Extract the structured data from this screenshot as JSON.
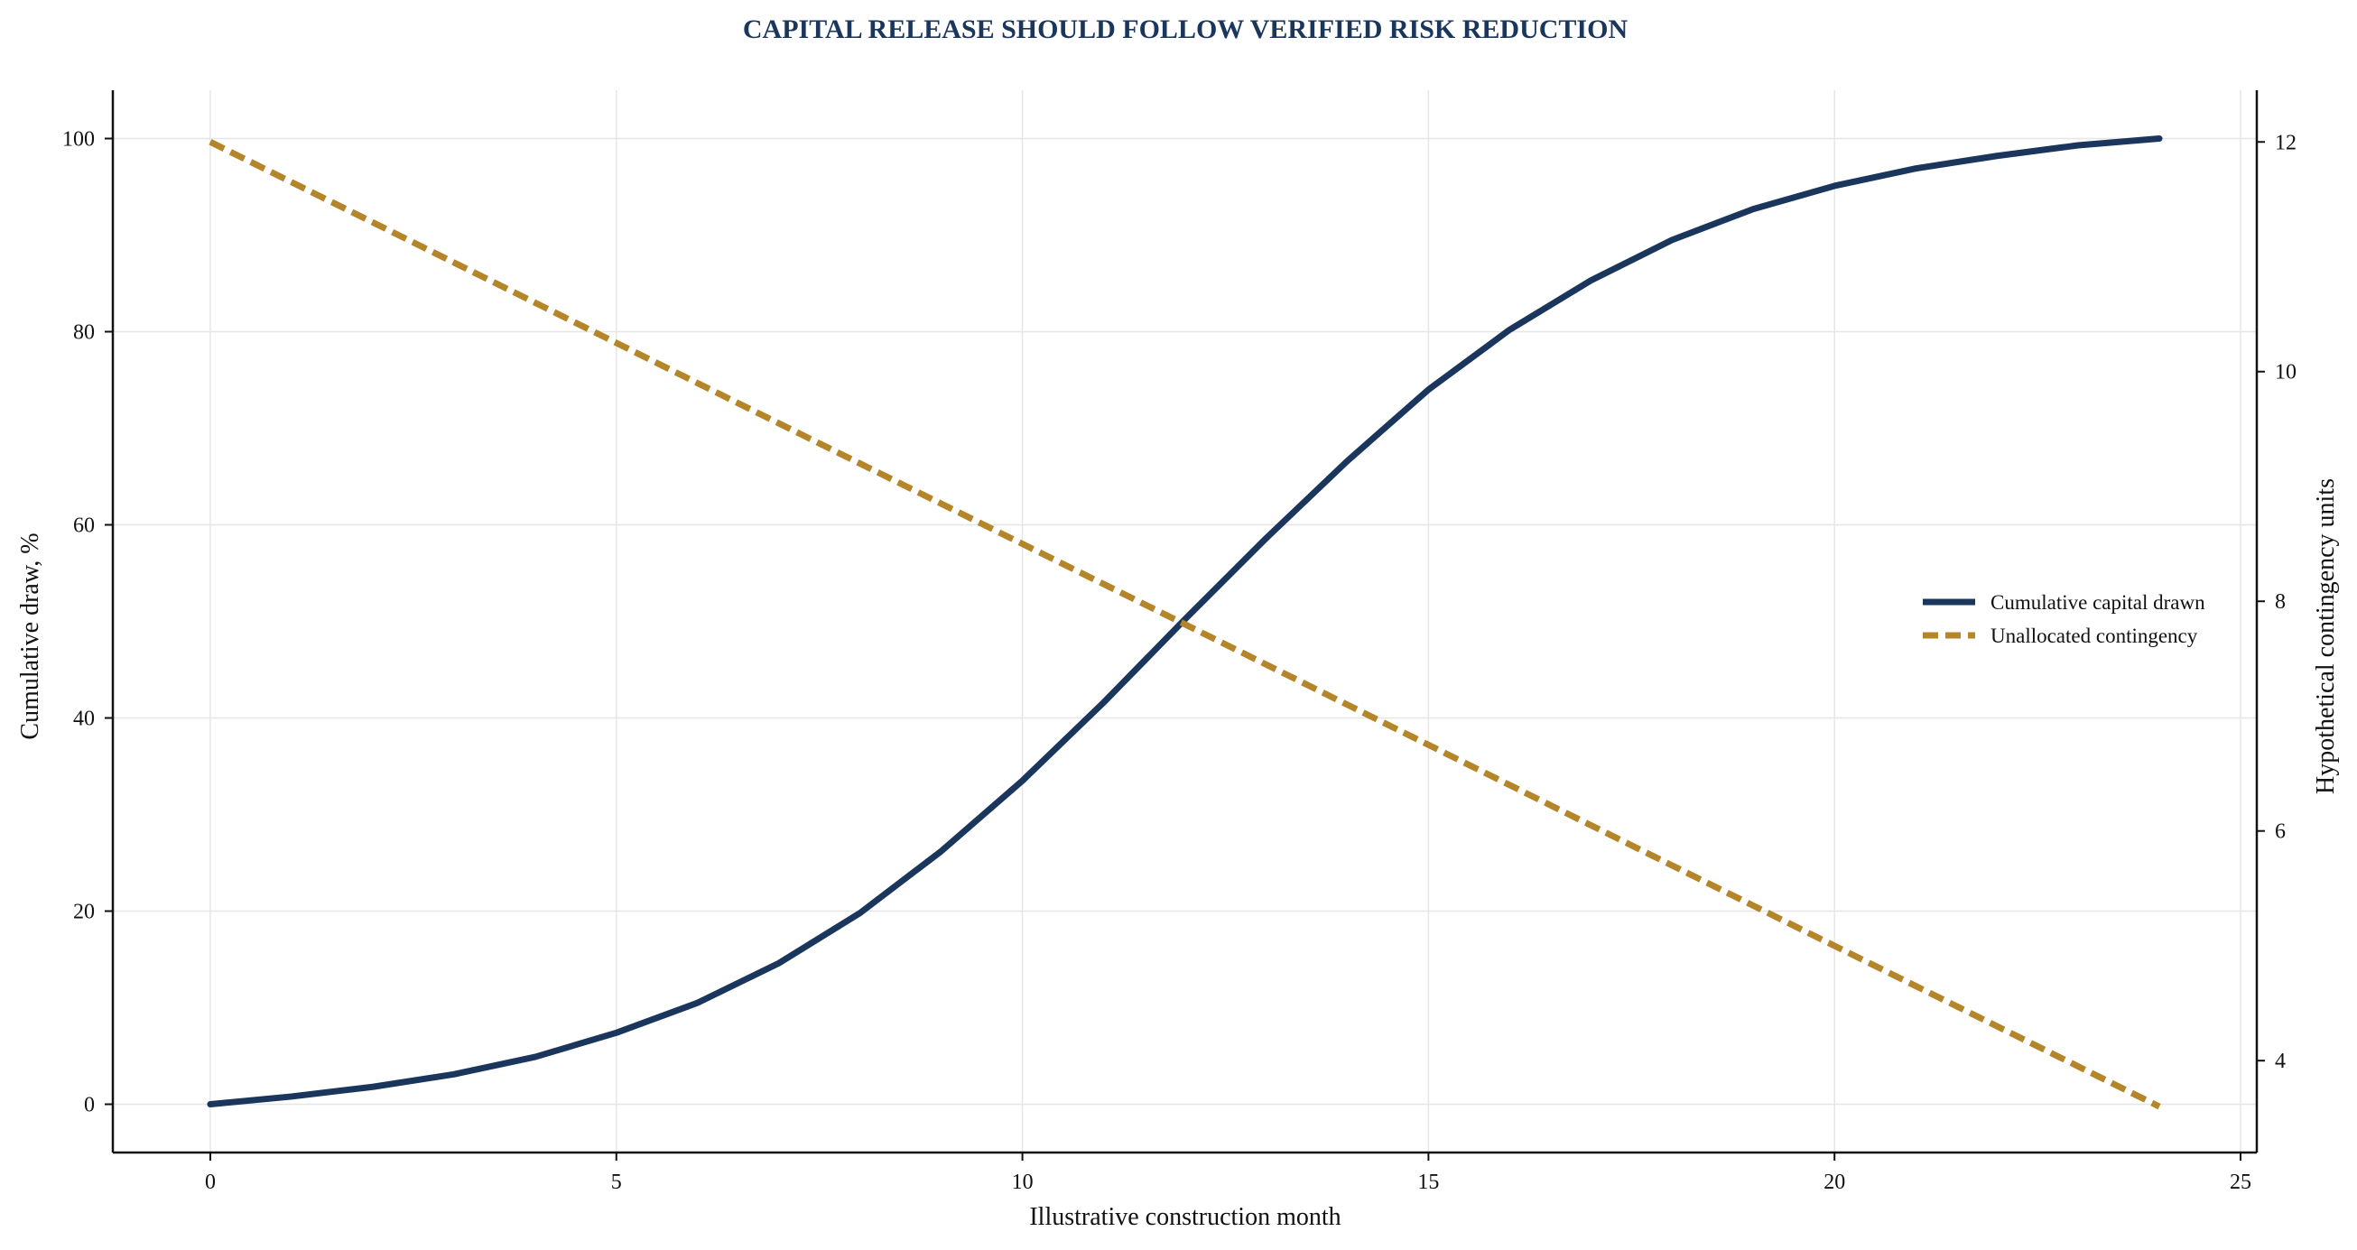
{
  "chart_data": {
    "type": "line",
    "title": "CAPITAL RELEASE SHOULD FOLLOW VERIFIED RISK REDUCTION",
    "xlabel": "Illustrative construction month",
    "ylabel": "Cumulative draw, %",
    "y2label": "Hypothetical contingency units",
    "xlim": [
      -1.2,
      25.2
    ],
    "ylim": [
      -5,
      105
    ],
    "y2lim": [
      3.2,
      12.45
    ],
    "xticks": [
      0,
      5,
      10,
      15,
      20,
      25
    ],
    "yticks": [
      0,
      20,
      40,
      60,
      80,
      100
    ],
    "y2ticks": [
      4,
      6,
      8,
      10,
      12
    ],
    "grid": true,
    "legend_position": "right",
    "colors": {
      "navy": "#1b365d",
      "gold": "#b5852a"
    },
    "series": [
      {
        "name": "Cumulative capital drawn",
        "axis": "left",
        "style": "solid",
        "x": [
          0,
          1,
          2,
          3,
          4,
          5,
          6,
          7,
          8,
          9,
          10,
          11,
          12,
          13,
          14,
          15,
          16,
          17,
          18,
          19,
          20,
          21,
          22,
          23,
          24
        ],
        "values": [
          0,
          0.8,
          1.8,
          3.1,
          4.9,
          7.4,
          10.5,
          14.6,
          19.8,
          26.2,
          33.5,
          41.6,
          50.2,
          58.6,
          66.6,
          74.0,
          80.2,
          85.3,
          89.5,
          92.7,
          95.1,
          96.9,
          98.2,
          99.3,
          100.0
        ]
      },
      {
        "name": "Unallocated contingency",
        "axis": "right",
        "style": "dashed",
        "x": [
          0,
          24
        ],
        "values": [
          12.0,
          3.6
        ]
      }
    ]
  }
}
